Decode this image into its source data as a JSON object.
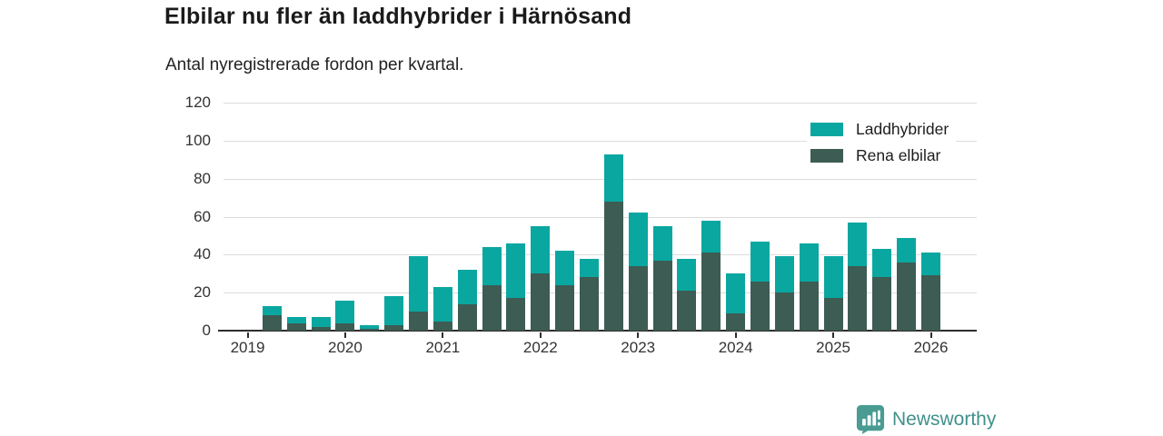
{
  "header": {
    "title": "Elbilar nu fler än laddhybrider i Härnösand",
    "subtitle": "Antal nyregistrerade fordon per kvartal."
  },
  "chart_data": {
    "type": "bar",
    "stacked": true,
    "title": "Elbilar nu fler än laddhybrider i Härnösand",
    "subtitle": "Antal nyregistrerade fordon per kvartal.",
    "xlabel": "",
    "ylabel": "",
    "ylim": [
      0,
      120
    ],
    "yticks": [
      0,
      20,
      40,
      60,
      80,
      100,
      120
    ],
    "grid": "horizontal",
    "legend_position": "top-right",
    "x": [
      "2019 Q1",
      "2019 Q2",
      "2019 Q3",
      "2019 Q4",
      "2020 Q1",
      "2020 Q2",
      "2020 Q3",
      "2020 Q4",
      "2021 Q1",
      "2021 Q2",
      "2021 Q3",
      "2021 Q4",
      "2022 Q1",
      "2022 Q2",
      "2022 Q3",
      "2022 Q4",
      "2023 Q1",
      "2023 Q2",
      "2023 Q3",
      "2023 Q4",
      "2024 Q1",
      "2024 Q2",
      "2024 Q3",
      "2024 Q4",
      "2025 Q1",
      "2025 Q2",
      "2025 Q3",
      "2025 Q4",
      "2026 Q1"
    ],
    "year_tick_labels": [
      "2019",
      "2020",
      "2021",
      "2022",
      "2023",
      "2024",
      "2025",
      "2026"
    ],
    "series": [
      {
        "name": "Laddhybrider",
        "color": "#0aa7a1",
        "values": [
          0,
          5,
          3,
          5,
          12,
          2,
          15,
          29,
          18,
          18,
          20,
          29,
          25,
          18,
          10,
          25,
          28,
          18,
          17,
          17,
          21,
          21,
          19,
          20,
          22,
          23,
          15,
          13,
          12
        ]
      },
      {
        "name": "Rena elbilar",
        "color": "#3d5c53",
        "values": [
          0,
          8,
          4,
          2,
          4,
          1,
          3,
          10,
          5,
          14,
          24,
          17,
          30,
          24,
          28,
          68,
          34,
          37,
          21,
          41,
          9,
          26,
          20,
          26,
          17,
          34,
          28,
          36,
          29
        ]
      }
    ],
    "stack_order_bottom_to_top": [
      1,
      0
    ],
    "totals": [
      0,
      13,
      7,
      7,
      16,
      3,
      18,
      39,
      23,
      32,
      44,
      46,
      55,
      42,
      38,
      93,
      62,
      55,
      38,
      58,
      30,
      47,
      39,
      46,
      39,
      57,
      43,
      49,
      41
    ]
  },
  "footer": {
    "brand": "Newsworthy"
  },
  "colors": {
    "laddhybrider": "#0aa7a1",
    "rena_elbilar": "#3d5c53",
    "gridline": "#dcdcdc",
    "axis": "#2e2e2e",
    "brand_teal": "#4a9c93"
  }
}
